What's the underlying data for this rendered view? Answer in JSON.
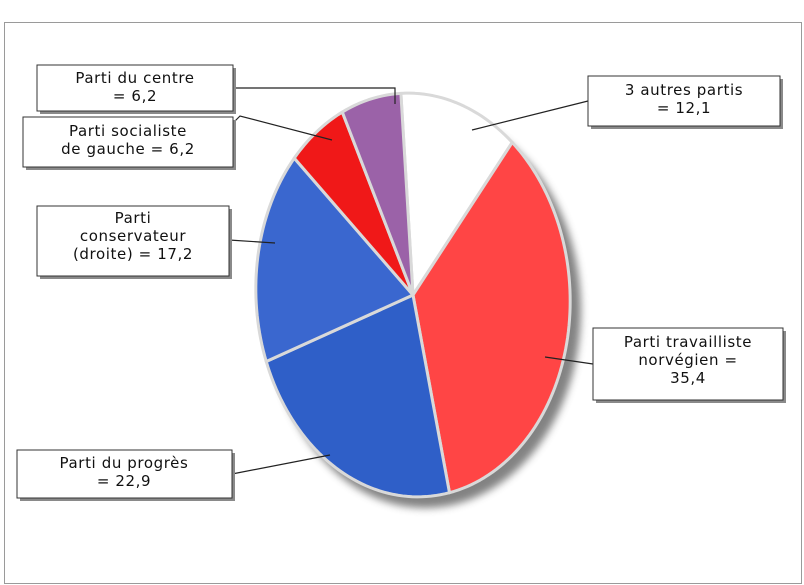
{
  "chart_data": {
    "type": "pie",
    "title": "",
    "slices": [
      {
        "label": "3 autres partis",
        "value": 12.1,
        "display": "12,1",
        "color": "#ffffff"
      },
      {
        "label": "Parti travailliste norvégien",
        "value": 35.4,
        "display": "35,4",
        "color": "#ff4545"
      },
      {
        "label": "Parti du progrès",
        "value": 22.9,
        "display": "22,9",
        "color": "#2f5fc8"
      },
      {
        "label": "Parti conservateur (droite)",
        "value": 17.2,
        "display": "17,2",
        "color": "#3a67cf"
      },
      {
        "label": "Parti socialiste de gauche",
        "value": 6.2,
        "display": "6,2",
        "color": "#f01818"
      },
      {
        "label": "Parti du centre",
        "value": 6.2,
        "display": "6,2",
        "color": "#9b62a8"
      }
    ],
    "slice_labels": [
      [
        "3 autres partis",
        "= 12,1"
      ],
      [
        "Parti travailliste",
        "norvégien =",
        "35,4"
      ],
      [
        "Parti du progrès",
        "= 22,9"
      ],
      [
        "Parti",
        "conservateur",
        "(droite) = 17,2"
      ],
      [
        "Parti socialiste",
        "de gauche = 6,2"
      ],
      [
        "Parti du centre",
        "= 6,2"
      ]
    ],
    "legend": "none"
  }
}
